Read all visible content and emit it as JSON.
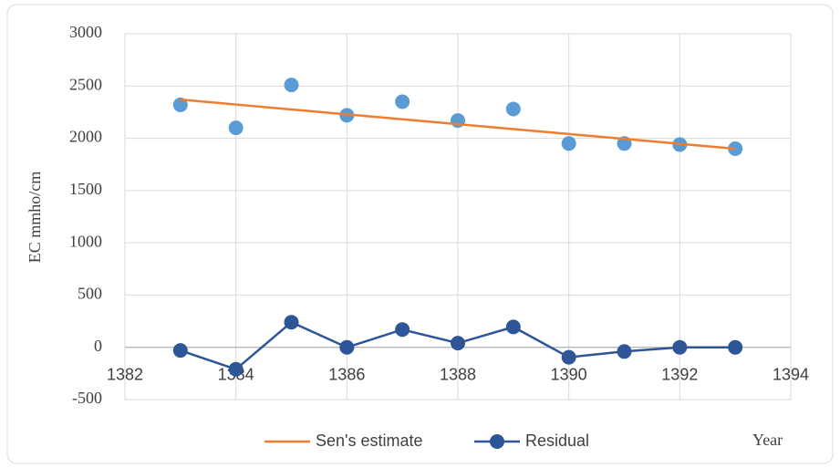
{
  "chart_data": {
    "type": "line",
    "x_label": "Year",
    "y_label": "EC mmho/cm",
    "x": [
      1383,
      1384,
      1385,
      1386,
      1387,
      1388,
      1389,
      1390,
      1391,
      1392,
      1393
    ],
    "series": [
      {
        "color": "#5b9bd5",
        "style": "markers",
        "values": [
          2320,
          2100,
          2510,
          2220,
          2350,
          2170,
          2280,
          1950,
          1950,
          1940,
          1900
        ]
      },
      {
        "name": "Sen's estimate",
        "color": "#ed7d31",
        "style": "line",
        "values": [
          2370,
          2323,
          2276,
          2229,
          2182,
          2135,
          2088,
          2041,
          1994,
          1947,
          1900
        ]
      },
      {
        "name": "Residual",
        "color": "#2e5597",
        "style": "line-markers",
        "values": [
          -30,
          -210,
          240,
          0,
          170,
          40,
          195,
          -95,
          -40,
          0,
          0
        ]
      }
    ],
    "xlim": [
      1382,
      1394
    ],
    "xticks": [
      1382,
      1384,
      1386,
      1388,
      1390,
      1392,
      1394
    ],
    "ylim": [
      -500,
      3000
    ],
    "yticks": [
      -500,
      0,
      500,
      1000,
      1500,
      2000,
      2500,
      3000
    ],
    "grid": true,
    "legend": "bottom"
  }
}
